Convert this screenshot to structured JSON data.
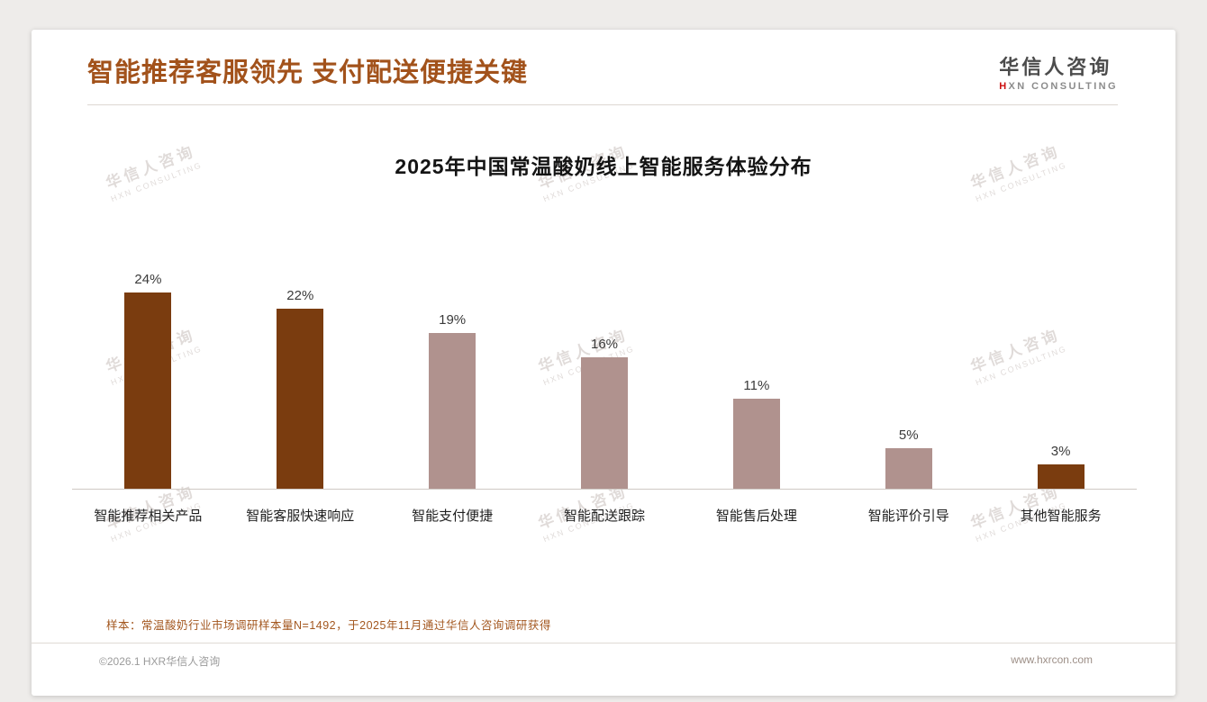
{
  "header": {
    "title": "智能推荐客服领先 支付配送便捷关键"
  },
  "logo": {
    "name": "华信人咨询",
    "mark": "H",
    "sub": "XN CONSULTING"
  },
  "watermark": {
    "line1": "华信人咨询",
    "line2": "HXN CONSULTING"
  },
  "chart_data": {
    "type": "bar",
    "title": "2025年中国常温酸奶线上智能服务体验分布",
    "categories": [
      "智能推荐相关产品",
      "智能客服快速响应",
      "智能支付便捷",
      "智能配送跟踪",
      "智能售后处理",
      "智能评价引导",
      "其他智能服务"
    ],
    "values": [
      24,
      22,
      19,
      16,
      11,
      5,
      3
    ],
    "unit": "%",
    "bar_colors": [
      "#7a3c0f",
      "#7a3c0f",
      "#b0928e",
      "#b0928e",
      "#b0928e",
      "#b0928e",
      "#7a3c0f"
    ],
    "xlabel": "",
    "ylabel": "",
    "ylim": [
      0,
      26
    ],
    "grid": false,
    "legend": "none"
  },
  "footnote": "样本：常温酸奶行业市场调研样本量N=1492，于2025年11月通过华信人咨询调研获得",
  "footer": {
    "left": "©2026.1 HXR华信人咨询",
    "right": "www.hxrcon.com"
  },
  "colors": {
    "accent": "#a2521b",
    "dark_bar": "#7a3c0f",
    "light_bar": "#b0928e",
    "logo_red": "#cc1111"
  }
}
